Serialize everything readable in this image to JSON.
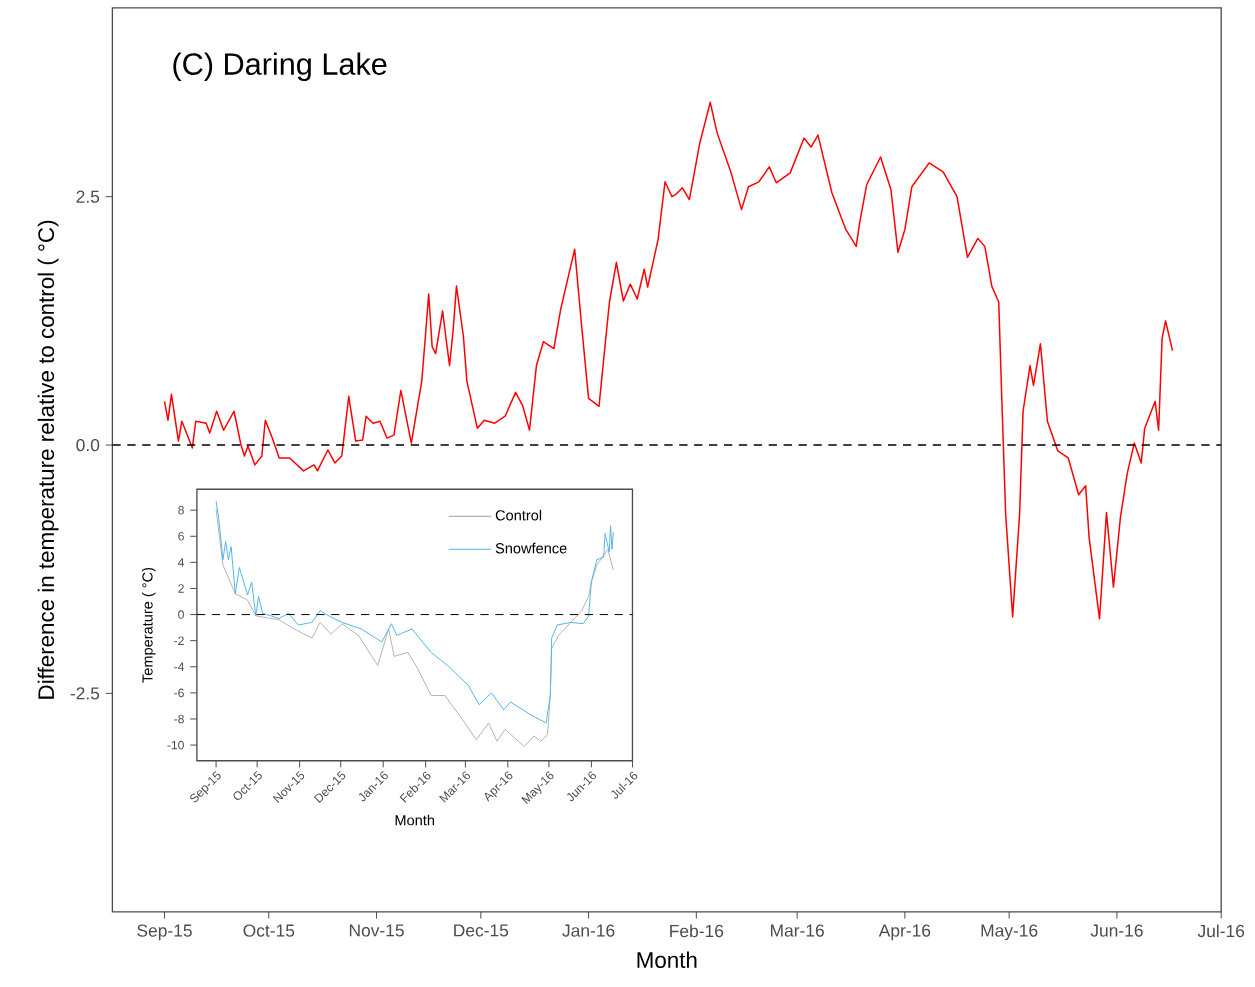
{
  "chart_data": [
    {
      "type": "line",
      "title": "(C) Daring Lake",
      "xlabel": "Month",
      "ylabel": "Difference in temperature relative to control ( °C)",
      "x": [
        "2015-09-01",
        "2015-09-02",
        "2015-09-03",
        "2015-09-05",
        "2015-09-06",
        "2015-09-09",
        "2015-09-10",
        "2015-09-13",
        "2015-09-14",
        "2015-09-16",
        "2015-09-18",
        "2015-09-21",
        "2015-09-23",
        "2015-09-24",
        "2015-09-25",
        "2015-09-27",
        "2015-09-29",
        "2015-09-30",
        "2015-10-02",
        "2015-10-04",
        "2015-10-07",
        "2015-10-11",
        "2015-10-14",
        "2015-10-15",
        "2015-10-18",
        "2015-10-20",
        "2015-10-22",
        "2015-10-24",
        "2015-10-26",
        "2015-10-28",
        "2015-10-29",
        "2015-10-31",
        "2015-11-02",
        "2015-11-04",
        "2015-11-06",
        "2015-11-08",
        "2015-11-11",
        "2015-11-14",
        "2015-11-15",
        "2015-11-16",
        "2015-11-17",
        "2015-11-18",
        "2015-11-20",
        "2015-11-21",
        "2015-11-22",
        "2015-11-23",
        "2015-11-24",
        "2015-11-26",
        "2015-11-27",
        "2015-11-30",
        "2015-12-02",
        "2015-12-05",
        "2015-12-08",
        "2015-12-11",
        "2015-12-13",
        "2015-12-15",
        "2015-12-17",
        "2015-12-19",
        "2015-12-22",
        "2015-12-24",
        "2015-12-28",
        "2015-12-30",
        "2016-01-01",
        "2016-01-04",
        "2016-01-07",
        "2016-01-09",
        "2016-01-11",
        "2016-01-13",
        "2016-01-15",
        "2016-01-17",
        "2016-01-18",
        "2016-01-21",
        "2016-01-23",
        "2016-01-25",
        "2016-01-26",
        "2016-01-28",
        "2016-01-30",
        "2016-02-02",
        "2016-02-05",
        "2016-02-07",
        "2016-02-11",
        "2016-02-14",
        "2016-02-16",
        "2016-02-19",
        "2016-02-22",
        "2016-02-24",
        "2016-02-28",
        "2016-03-03",
        "2016-03-05",
        "2016-03-07",
        "2016-03-11",
        "2016-03-15",
        "2016-03-18",
        "2016-03-19",
        "2016-03-21",
        "2016-03-25",
        "2016-03-28",
        "2016-03-30",
        "2016-04-01",
        "2016-04-03",
        "2016-04-08",
        "2016-04-12",
        "2016-04-16",
        "2016-04-19",
        "2016-04-22",
        "2016-04-24",
        "2016-04-26",
        "2016-04-28",
        "2016-04-29",
        "2016-04-30",
        "2016-05-02",
        "2016-05-04",
        "2016-05-05",
        "2016-05-07",
        "2016-05-08",
        "2016-05-10",
        "2016-05-12",
        "2016-05-15",
        "2016-05-18",
        "2016-05-21",
        "2016-05-23",
        "2016-05-24",
        "2016-05-27",
        "2016-05-29",
        "2016-05-31",
        "2016-06-02",
        "2016-06-04",
        "2016-06-06",
        "2016-06-08",
        "2016-06-09",
        "2016-06-12",
        "2016-06-13",
        "2016-06-14",
        "2016-06-15",
        "2016-06-17"
      ],
      "series": [
        {
          "color": "#ff0000",
          "values": [
            0.44,
            0.25,
            0.51,
            0.04,
            0.24,
            -0.03,
            0.24,
            0.22,
            0.12,
            0.34,
            0.15,
            0.34,
            0.0,
            -0.11,
            -0.01,
            -0.2,
            -0.11,
            0.25,
            0.07,
            -0.13,
            -0.13,
            -0.26,
            -0.2,
            -0.26,
            -0.05,
            -0.18,
            -0.11,
            0.49,
            0.04,
            0.05,
            0.29,
            0.22,
            0.24,
            0.07,
            0.1,
            0.55,
            0.02,
            0.64,
            1.07,
            1.52,
            0.99,
            0.92,
            1.35,
            1.07,
            0.8,
            1.14,
            1.6,
            1.09,
            0.64,
            0.17,
            0.25,
            0.22,
            0.29,
            0.53,
            0.4,
            0.15,
            0.8,
            1.04,
            0.97,
            1.37,
            1.97,
            1.2,
            0.47,
            0.39,
            1.44,
            1.84,
            1.45,
            1.62,
            1.47,
            1.77,
            1.59,
            2.07,
            2.65,
            2.5,
            2.52,
            2.59,
            2.47,
            3.04,
            3.45,
            3.14,
            2.74,
            2.37,
            2.6,
            2.65,
            2.8,
            2.64,
            2.74,
            3.09,
            3.0,
            3.12,
            2.54,
            2.17,
            2.0,
            2.24,
            2.62,
            2.9,
            2.57,
            1.94,
            2.17,
            2.6,
            2.84,
            2.75,
            2.5,
            1.89,
            2.08,
            2.0,
            1.6,
            1.44,
            0.34,
            -0.7,
            -1.73,
            -0.7,
            0.34,
            0.8,
            0.6,
            1.02,
            0.24,
            -0.06,
            -0.13,
            -0.5,
            -0.41,
            -0.93,
            -1.75,
            -0.68,
            -1.43,
            -0.73,
            -0.28,
            0.02,
            -0.18,
            0.17,
            0.44,
            0.15,
            1.07,
            1.25,
            0.95
          ]
        }
      ],
      "xlim": [
        "2015-08-17",
        "2016-07-01"
      ],
      "ylim": [
        -4.7,
        4.4
      ],
      "xticks": [
        {
          "value": "2015-09-01",
          "label": "Sep-15"
        },
        {
          "value": "2015-10-01",
          "label": "Oct-15"
        },
        {
          "value": "2015-11-01",
          "label": "Nov-15"
        },
        {
          "value": "2015-12-01",
          "label": "Dec-15"
        },
        {
          "value": "2016-01-01",
          "label": "Jan-16"
        },
        {
          "value": "2016-02-01",
          "label": "Feb-16"
        },
        {
          "value": "2016-03-01",
          "label": "Mar-16"
        },
        {
          "value": "2016-04-01",
          "label": "Apr-16"
        },
        {
          "value": "2016-05-01",
          "label": "May-16"
        },
        {
          "value": "2016-06-01",
          "label": "Jun-16"
        },
        {
          "value": "2016-07-01",
          "label": "Jul-16"
        }
      ],
      "yticks": [
        -2.5,
        {
          "value": 0,
          "label": "0.0"
        },
        2.5
      ],
      "ref_lines": [
        {
          "axis": "y",
          "value": 0,
          "color": "#000000",
          "line_style": "dashed"
        }
      ],
      "marker": "none",
      "line_style": "solid"
    },
    {
      "type": "line",
      "xlabel": "Month",
      "ylabel": "Temperature ( °C)",
      "series": [
        {
          "name": "Control",
          "color": "#b3b3b3",
          "x": [
            "2015-09-01",
            "2015-09-06",
            "2015-09-15",
            "2015-09-24",
            "2015-09-30",
            "2015-10-17",
            "2015-10-28",
            "2015-11-10",
            "2015-11-16",
            "2015-11-24",
            "2015-12-02",
            "2015-12-14",
            "2015-12-28",
            "2016-01-05",
            "2016-01-09",
            "2016-01-19",
            "2016-01-26",
            "2016-02-05",
            "2016-02-15",
            "2016-02-29",
            "2016-03-09",
            "2016-03-18",
            "2016-03-24",
            "2016-03-30",
            "2016-04-13",
            "2016-04-20",
            "2016-04-25",
            "2016-04-30",
            "2016-05-02",
            "2016-05-03",
            "2016-05-08",
            "2016-05-17",
            "2016-05-25",
            "2016-05-30",
            "2016-06-01",
            "2016-06-05",
            "2016-06-13",
            "2016-06-17"
          ],
          "values": [
            8.1,
            3.8,
            1.6,
            1.1,
            -0.1,
            -0.4,
            -1.1,
            -1.8,
            -0.6,
            -1.5,
            -0.7,
            -1.6,
            -3.9,
            -1.1,
            -3.2,
            -2.9,
            -4.1,
            -6.2,
            -6.2,
            -8.2,
            -9.6,
            -8.3,
            -9.7,
            -8.8,
            -10.1,
            -9.3,
            -9.7,
            -9.2,
            -6.2,
            -2.6,
            -1.6,
            -0.6,
            0.3,
            1.4,
            2.5,
            3.8,
            5.0,
            3.4
          ]
        },
        {
          "name": "Snowfence",
          "color": "#56b4e9",
          "x": [
            "2015-09-01",
            "2015-09-03",
            "2015-09-06",
            "2015-09-08",
            "2015-09-10",
            "2015-09-12",
            "2015-09-15",
            "2015-09-18",
            "2015-09-24",
            "2015-09-27",
            "2015-09-30",
            "2015-10-02",
            "2015-10-05",
            "2015-10-17",
            "2015-10-24",
            "2015-10-31",
            "2015-11-10",
            "2015-11-16",
            "2015-11-24",
            "2015-12-02",
            "2015-12-16",
            "2015-12-31",
            "2016-01-07",
            "2016-01-11",
            "2016-01-22",
            "2016-02-05",
            "2016-02-17",
            "2016-03-03",
            "2016-03-11",
            "2016-03-20",
            "2016-03-29",
            "2016-04-03",
            "2016-04-18",
            "2016-04-29",
            "2016-05-02",
            "2016-05-03",
            "2016-05-07",
            "2016-05-17",
            "2016-05-26",
            "2016-05-30",
            "2016-06-01",
            "2016-06-05",
            "2016-06-10",
            "2016-06-11",
            "2016-06-14",
            "2016-06-15",
            "2016-06-16",
            "2016-06-17"
          ],
          "values": [
            8.7,
            7.3,
            4.2,
            5.6,
            4.2,
            5.2,
            1.6,
            3.6,
            1.5,
            2.5,
            -0.1,
            1.4,
            0.1,
            -0.3,
            0.1,
            -0.8,
            -0.6,
            0.3,
            -0.2,
            -0.6,
            -1.1,
            -2.1,
            -0.7,
            -1.6,
            -1.1,
            -2.9,
            -3.9,
            -5.4,
            -6.9,
            -6.0,
            -7.3,
            -6.7,
            -7.7,
            -8.3,
            -6.2,
            -1.8,
            -0.8,
            -0.6,
            -0.7,
            -0.1,
            2.5,
            4.2,
            4.4,
            6.2,
            4.8,
            6.8,
            5.0,
            6.3
          ]
        }
      ],
      "xlim": [
        "2015-08-18",
        "2016-07-01"
      ],
      "ylim": [
        -11.2,
        9.6
      ],
      "xticks": [
        {
          "value": "2015-09-01",
          "label": "Sep-15"
        },
        {
          "value": "2015-10-01",
          "label": "Oct-15"
        },
        {
          "value": "2015-11-01",
          "label": "Nov-15"
        },
        {
          "value": "2015-12-01",
          "label": "Dec-15"
        },
        {
          "value": "2016-01-01",
          "label": "Jan-16"
        },
        {
          "value": "2016-02-01",
          "label": "Feb-16"
        },
        {
          "value": "2016-03-01",
          "label": "Mar-16"
        },
        {
          "value": "2016-04-01",
          "label": "Apr-16"
        },
        {
          "value": "2016-05-01",
          "label": "May-16"
        },
        {
          "value": "2016-06-01",
          "label": "Jun-16"
        },
        {
          "value": "2016-07-01",
          "label": "Jul-16"
        }
      ],
      "yticks": [
        8,
        6,
        4,
        2,
        0,
        -2,
        -4,
        -6,
        -8,
        -10
      ],
      "ref_lines": [
        {
          "axis": "y",
          "value": 0,
          "color": "#000000",
          "line_style": "dashed"
        }
      ],
      "legend": "top right",
      "marker": "none",
      "line_style": "solid"
    }
  ]
}
